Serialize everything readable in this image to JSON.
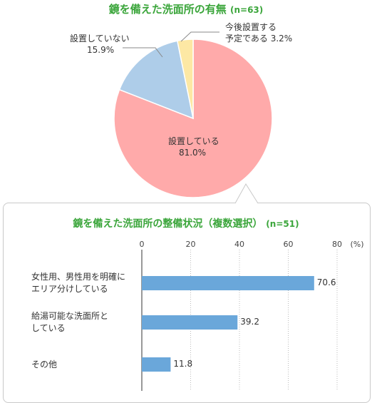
{
  "chart_data": [
    {
      "type": "pie",
      "title": "鏡を備えた洗面所の有無",
      "n_label": "(n=63)",
      "slices": [
        {
          "label": "設置している",
          "value": 81.0,
          "value_label": "81.0%",
          "color": "#ffaaaa"
        },
        {
          "label": "設置していない",
          "value": 15.9,
          "value_label": "15.9%",
          "color": "#aecde9"
        },
        {
          "label_line1": "今後設置する",
          "label_line2": "予定である",
          "label": "今後設置する予定である",
          "value": 3.2,
          "value_label": "3.2%",
          "color": "#fde8a4"
        }
      ]
    },
    {
      "type": "bar",
      "orientation": "horizontal",
      "title": "鏡を備えた洗面所の整備状況（複数選択）",
      "n_label": "(n=51)",
      "unit_label": "(%)",
      "xlim": [
        0,
        80
      ],
      "ticks": [
        "0",
        "20",
        "40",
        "60",
        "80"
      ],
      "categories": [
        {
          "line1": "女性用、男性用を明確に",
          "line2": "エリア分けしている"
        },
        {
          "line1": "給湯可能な洗面所と",
          "line2": "している"
        },
        {
          "line1": "その他",
          "line2": ""
        }
      ],
      "values": [
        70.6,
        39.2,
        11.8
      ],
      "value_labels": [
        "70.6",
        "39.2",
        "11.8"
      ],
      "bar_color": "#6aa7da",
      "grid": true
    }
  ]
}
